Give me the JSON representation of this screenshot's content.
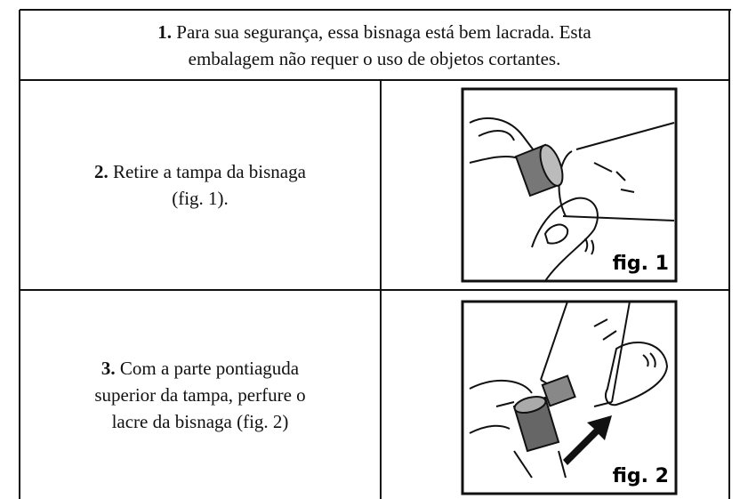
{
  "table": {
    "rows": [
      {
        "number": "1.",
        "lines": [
          "Para sua segurança, essa bisnaga está bem lacrada. Esta",
          "embalagem não requer o uso de objetos cortantes."
        ]
      },
      {
        "number": "2.",
        "lines": [
          "Retire a tampa da bisnaga",
          "(fig. 1)."
        ],
        "figure": "fig. 1"
      },
      {
        "number": "3.",
        "lines": [
          "Com a parte pontiaguda",
          "superior da tampa, perfure o",
          "lacre da bisnaga (fig. 2)"
        ],
        "figure": "fig. 2"
      }
    ]
  }
}
